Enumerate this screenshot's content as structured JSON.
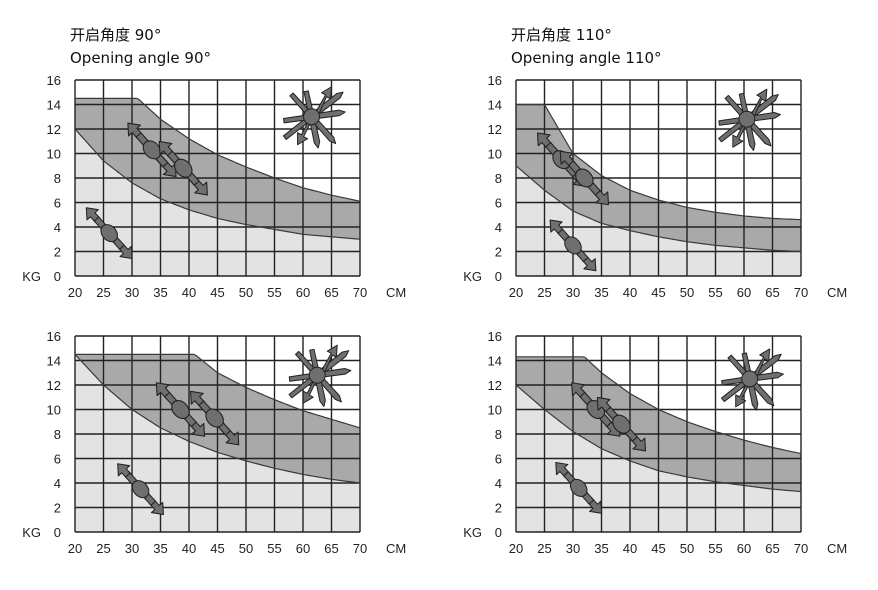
{
  "chart_data": [
    {
      "type": "area",
      "title_cn": "开启角度 90°",
      "title_en": "Opening angle 90°",
      "x_unit": "CM",
      "y_unit": "KG",
      "xlim": [
        20,
        70
      ],
      "ylim": [
        0,
        16
      ],
      "x_ticks": [
        "20",
        "25",
        "30",
        "35",
        "40",
        "45",
        "50",
        "55",
        "60",
        "65",
        "70"
      ],
      "y_ticks": [
        "0",
        "2",
        "4",
        "6",
        "8",
        "10",
        "12",
        "14",
        "16"
      ],
      "grid": true,
      "upper_curve": {
        "x": [
          20,
          31,
          35,
          40,
          45,
          50,
          55,
          60,
          65,
          70
        ],
        "y": [
          14.5,
          14.5,
          12.8,
          11.2,
          9.9,
          8.9,
          8.0,
          7.2,
          6.6,
          6.1
        ]
      },
      "lower_curve": {
        "x": [
          20,
          25,
          30,
          35,
          40,
          45,
          50,
          55,
          60,
          65,
          70
        ],
        "y": [
          12.0,
          9.4,
          7.6,
          6.3,
          5.4,
          4.7,
          4.2,
          3.8,
          3.4,
          3.2,
          3.0
        ]
      },
      "arrow_icons": [
        {
          "x": 33.5,
          "y": 10.3,
          "size": 1.0
        },
        {
          "x": 39.0,
          "y": 8.8,
          "size": 1.0
        },
        {
          "x": 26.0,
          "y": 3.5,
          "size": 0.95
        }
      ],
      "burst_icon": {
        "x": 61.5,
        "y": 13.0
      }
    },
    {
      "type": "area",
      "title_cn": "开启角度 110°",
      "title_en": "Opening angle 110°",
      "x_unit": "CM",
      "y_unit": "KG",
      "xlim": [
        20,
        70
      ],
      "ylim": [
        0,
        16
      ],
      "x_ticks": [
        "20",
        "25",
        "30",
        "35",
        "40",
        "45",
        "50",
        "55",
        "60",
        "65",
        "70"
      ],
      "y_ticks": [
        "0",
        "2",
        "4",
        "6",
        "8",
        "10",
        "12",
        "14",
        "16"
      ],
      "grid": true,
      "upper_curve": {
        "x": [
          20,
          25,
          30,
          35,
          40,
          45,
          50,
          55,
          60,
          65,
          70
        ],
        "y": [
          14.0,
          14.0,
          10.0,
          8.2,
          7.0,
          6.2,
          5.6,
          5.2,
          4.9,
          4.7,
          4.6
        ]
      },
      "lower_curve": {
        "x": [
          20,
          25,
          30,
          35,
          40,
          45,
          50,
          55,
          60,
          65,
          70
        ],
        "y": [
          9.0,
          7.0,
          5.3,
          4.3,
          3.7,
          3.2,
          2.8,
          2.5,
          2.3,
          2.1,
          2.0
        ]
      },
      "arrow_icons": [
        {
          "x": 28.0,
          "y": 9.5,
          "size": 1.0
        },
        {
          "x": 32.0,
          "y": 8.0,
          "size": 1.0
        },
        {
          "x": 30.0,
          "y": 2.5,
          "size": 0.95
        }
      ],
      "burst_icon": {
        "x": 60.5,
        "y": 12.8
      }
    },
    {
      "type": "area",
      "title_cn": "",
      "title_en": "",
      "x_unit": "CM",
      "y_unit": "KG",
      "xlim": [
        20,
        70
      ],
      "ylim": [
        0,
        16
      ],
      "x_ticks": [
        "20",
        "25",
        "30",
        "35",
        "40",
        "45",
        "50",
        "55",
        "60",
        "65",
        "70"
      ],
      "y_ticks": [
        "0",
        "2",
        "4",
        "6",
        "8",
        "10",
        "12",
        "14",
        "16"
      ],
      "grid": true,
      "upper_curve": {
        "x": [
          20,
          41,
          45,
          50,
          55,
          60,
          65,
          70
        ],
        "y": [
          14.5,
          14.5,
          13.0,
          11.8,
          10.8,
          9.9,
          9.2,
          8.5
        ]
      },
      "lower_curve": {
        "x": [
          20,
          25,
          30,
          35,
          40,
          45,
          50,
          55,
          60,
          65,
          70
        ],
        "y": [
          14.5,
          12.0,
          10.0,
          8.5,
          7.4,
          6.5,
          5.8,
          5.2,
          4.7,
          4.3,
          4.0
        ]
      },
      "arrow_icons": [
        {
          "x": 38.5,
          "y": 10.0,
          "size": 1.0
        },
        {
          "x": 44.5,
          "y": 9.3,
          "size": 1.0
        },
        {
          "x": 31.5,
          "y": 3.5,
          "size": 0.95
        }
      ],
      "burst_icon": {
        "x": 62.5,
        "y": 12.8
      }
    },
    {
      "type": "area",
      "title_cn": "",
      "title_en": "",
      "x_unit": "CM",
      "y_unit": "KG",
      "xlim": [
        20,
        70
      ],
      "ylim": [
        0,
        16
      ],
      "x_ticks": [
        "20",
        "25",
        "30",
        "35",
        "40",
        "45",
        "50",
        "55",
        "60",
        "65",
        "70"
      ],
      "y_ticks": [
        "0",
        "2",
        "4",
        "6",
        "8",
        "10",
        "12",
        "14",
        "16"
      ],
      "grid": true,
      "upper_curve": {
        "x": [
          20,
          32,
          35,
          40,
          45,
          50,
          55,
          60,
          65,
          70
        ],
        "y": [
          14.3,
          14.3,
          13.0,
          11.3,
          10.0,
          9.0,
          8.2,
          7.5,
          6.9,
          6.4
        ]
      },
      "lower_curve": {
        "x": [
          20,
          25,
          30,
          35,
          40,
          45,
          50,
          55,
          60,
          65,
          70
        ],
        "y": [
          12.0,
          10.0,
          8.2,
          6.8,
          5.8,
          5.0,
          4.5,
          4.1,
          3.8,
          3.5,
          3.3
        ]
      },
      "arrow_icons": [
        {
          "x": 34.0,
          "y": 10.0,
          "size": 1.0
        },
        {
          "x": 38.5,
          "y": 8.8,
          "size": 1.0
        },
        {
          "x": 31.0,
          "y": 3.6,
          "size": 0.95
        }
      ],
      "burst_icon": {
        "x": 61.0,
        "y": 12.5
      }
    }
  ],
  "colors": {
    "grid": "#222222",
    "dark_band": "#a9a9a9",
    "light_band": "#e3e3e3",
    "icon_fill": "#6f6f6f",
    "icon_stroke": "#222222",
    "text": "#222222"
  }
}
